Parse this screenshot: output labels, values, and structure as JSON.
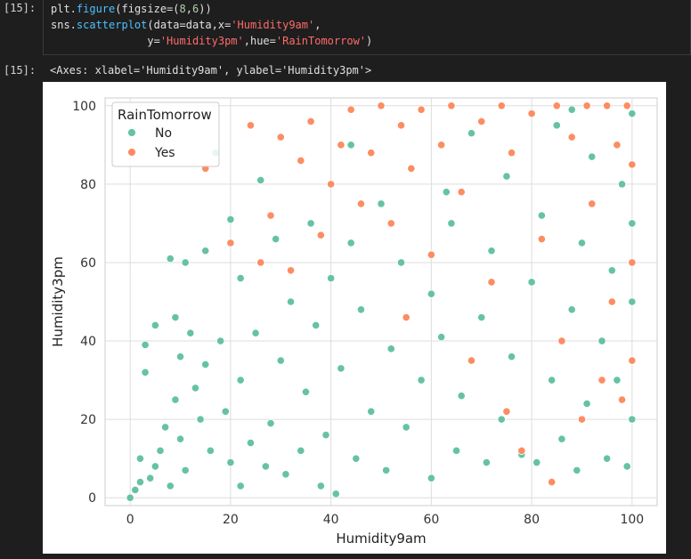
{
  "cell": {
    "input_prompt": "[15]:",
    "output_prompt": "[15]:",
    "code_lines": [
      [
        {
          "t": "plt.",
          "c": "op"
        },
        {
          "t": "figure",
          "c": "fn"
        },
        {
          "t": "(figsize=(",
          "c": "op"
        },
        {
          "t": "8",
          "c": "num"
        },
        {
          "t": ",",
          "c": "op"
        },
        {
          "t": "6",
          "c": "num"
        },
        {
          "t": "))",
          "c": "op"
        }
      ],
      [
        {
          "t": "sns.",
          "c": "op"
        },
        {
          "t": "scatterplot",
          "c": "fn"
        },
        {
          "t": "(data=data,x=",
          "c": "op"
        },
        {
          "t": "'Humidity9am'",
          "c": "str"
        },
        {
          "t": ",",
          "c": "op"
        }
      ],
      [
        {
          "t": "               y=",
          "c": "op"
        },
        {
          "t": "'Humidity3pm'",
          "c": "str"
        },
        {
          "t": ",hue=",
          "c": "op"
        },
        {
          "t": "'RainTomorrow'",
          "c": "str"
        },
        {
          "t": ")",
          "c": "op"
        }
      ]
    ],
    "output_text": "<Axes: xlabel='Humidity9am', ylabel='Humidity3pm'>"
  },
  "chart_data": {
    "type": "scatter",
    "xlabel": "Humidity9am",
    "ylabel": "Humidity3pm",
    "xlim": [
      -5,
      105
    ],
    "ylim": [
      -2,
      102
    ],
    "xticks": [
      0,
      20,
      40,
      60,
      80,
      100
    ],
    "yticks": [
      0,
      20,
      40,
      60,
      80,
      100
    ],
    "grid": true,
    "legend": {
      "title": "RainTomorrow",
      "placement": "upper-left",
      "entries": [
        "No",
        "Yes"
      ]
    },
    "series": [
      {
        "name": "No",
        "color": "#66c2a5",
        "points": [
          [
            0,
            0
          ],
          [
            1,
            2
          ],
          [
            2,
            4
          ],
          [
            2,
            10
          ],
          [
            3,
            32
          ],
          [
            3,
            39
          ],
          [
            4,
            5
          ],
          [
            5,
            8
          ],
          [
            5,
            44
          ],
          [
            6,
            12
          ],
          [
            7,
            18
          ],
          [
            8,
            61
          ],
          [
            8,
            3
          ],
          [
            9,
            25
          ],
          [
            9,
            46
          ],
          [
            10,
            15
          ],
          [
            10,
            36
          ],
          [
            11,
            60
          ],
          [
            11,
            7
          ],
          [
            12,
            42
          ],
          [
            13,
            28
          ],
          [
            14,
            20
          ],
          [
            15,
            63
          ],
          [
            15,
            34
          ],
          [
            16,
            12
          ],
          [
            17,
            88
          ],
          [
            18,
            40
          ],
          [
            19,
            22
          ],
          [
            20,
            71
          ],
          [
            20,
            9
          ],
          [
            22,
            30
          ],
          [
            22,
            56
          ],
          [
            24,
            14
          ],
          [
            25,
            42
          ],
          [
            26,
            81
          ],
          [
            27,
            8
          ],
          [
            28,
            19
          ],
          [
            29,
            66
          ],
          [
            30,
            35
          ],
          [
            31,
            6
          ],
          [
            32,
            50
          ],
          [
            34,
            12
          ],
          [
            35,
            27
          ],
          [
            36,
            70
          ],
          [
            37,
            44
          ],
          [
            38,
            3
          ],
          [
            39,
            16
          ],
          [
            40,
            56
          ],
          [
            41,
            1
          ],
          [
            42,
            33
          ],
          [
            44,
            90
          ],
          [
            45,
            10
          ],
          [
            46,
            48
          ],
          [
            48,
            22
          ],
          [
            50,
            75
          ],
          [
            51,
            7
          ],
          [
            52,
            38
          ],
          [
            54,
            60
          ],
          [
            55,
            18
          ],
          [
            56,
            84
          ],
          [
            58,
            30
          ],
          [
            60,
            5
          ],
          [
            60,
            52
          ],
          [
            62,
            41
          ],
          [
            64,
            70
          ],
          [
            65,
            12
          ],
          [
            66,
            26
          ],
          [
            68,
            93
          ],
          [
            70,
            46
          ],
          [
            71,
            9
          ],
          [
            72,
            63
          ],
          [
            74,
            20
          ],
          [
            75,
            82
          ],
          [
            76,
            36
          ],
          [
            78,
            11
          ],
          [
            80,
            55
          ],
          [
            81,
            9
          ],
          [
            82,
            72
          ],
          [
            84,
            30
          ],
          [
            85,
            95
          ],
          [
            86,
            15
          ],
          [
            88,
            48
          ],
          [
            89,
            7
          ],
          [
            90,
            65
          ],
          [
            91,
            24
          ],
          [
            92,
            87
          ],
          [
            94,
            40
          ],
          [
            95,
            10
          ],
          [
            96,
            58
          ],
          [
            97,
            30
          ],
          [
            98,
            80
          ],
          [
            99,
            8
          ],
          [
            100,
            20
          ],
          [
            100,
            50
          ],
          [
            100,
            70
          ],
          [
            100,
            98
          ],
          [
            22,
            3
          ],
          [
            44,
            65
          ],
          [
            88,
            99
          ],
          [
            63,
            78
          ]
        ]
      },
      {
        "name": "Yes",
        "color": "#fc8d62",
        "points": [
          [
            15,
            84
          ],
          [
            20,
            65
          ],
          [
            24,
            95
          ],
          [
            26,
            60
          ],
          [
            28,
            72
          ],
          [
            30,
            92
          ],
          [
            32,
            58
          ],
          [
            34,
            86
          ],
          [
            36,
            96
          ],
          [
            38,
            67
          ],
          [
            40,
            80
          ],
          [
            42,
            90
          ],
          [
            44,
            99
          ],
          [
            46,
            75
          ],
          [
            48,
            88
          ],
          [
            50,
            100
          ],
          [
            52,
            70
          ],
          [
            54,
            95
          ],
          [
            55,
            46
          ],
          [
            56,
            84
          ],
          [
            58,
            99
          ],
          [
            60,
            62
          ],
          [
            62,
            90
          ],
          [
            64,
            100
          ],
          [
            66,
            78
          ],
          [
            68,
            35
          ],
          [
            70,
            96
          ],
          [
            72,
            55
          ],
          [
            74,
            100
          ],
          [
            75,
            22
          ],
          [
            76,
            88
          ],
          [
            78,
            12
          ],
          [
            80,
            98
          ],
          [
            82,
            66
          ],
          [
            84,
            4
          ],
          [
            85,
            100
          ],
          [
            86,
            40
          ],
          [
            88,
            92
          ],
          [
            90,
            20
          ],
          [
            91,
            100
          ],
          [
            92,
            75
          ],
          [
            94,
            30
          ],
          [
            95,
            100
          ],
          [
            96,
            50
          ],
          [
            97,
            90
          ],
          [
            98,
            25
          ],
          [
            99,
            100
          ],
          [
            100,
            60
          ],
          [
            100,
            85
          ],
          [
            100,
            35
          ]
        ]
      }
    ]
  }
}
